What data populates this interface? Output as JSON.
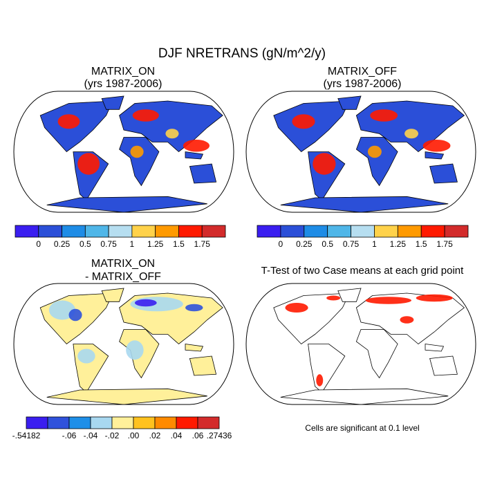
{
  "title": "DJF NRETRANS (gN/m^2/y)",
  "panels": [
    {
      "title": "MATRIX_ON",
      "subtitle": "(yrs 1987-2006)"
    },
    {
      "title": "MATRIX_OFF",
      "subtitle": "(yrs 1987-2006)"
    },
    {
      "title": "MATRIX_ON",
      "subtitle": "- MATRIX_OFF"
    },
    {
      "title": "T-Test of two Case means at each grid point",
      "note": "Cells are significant at 0.1 level"
    }
  ],
  "colorbars": [
    {
      "colors": [
        "#3a1ef0",
        "#2b4fd8",
        "#1e8ce6",
        "#4fb6e8",
        "#b6def0",
        "#ffd24a",
        "#ff9a00",
        "#ff1a00",
        "#d32b2b"
      ],
      "labels": [
        "0",
        "0.25",
        "0.5",
        "0.75",
        "1",
        "1.25",
        "1.5",
        "1.75"
      ]
    },
    {
      "colors": [
        "#3a1ef0",
        "#2b4fd8",
        "#1e8ce6",
        "#4fb6e8",
        "#b6def0",
        "#ffd24a",
        "#ff9a00",
        "#ff1a00",
        "#d32b2b"
      ],
      "labels": [
        "0",
        "0.25",
        "0.5",
        "0.75",
        "1",
        "1.25",
        "1.5",
        "1.75"
      ]
    },
    {
      "colors": [
        "#3a1ef0",
        "#2f52dc",
        "#1e8fe8",
        "#a8d8f0",
        "#fff09a",
        "#ffc21f",
        "#ff8a00",
        "#ff1a00",
        "#d32b2b"
      ],
      "labels": [
        "-.54182",
        "-.06",
        "-.04",
        "-.02",
        ".00",
        ".02",
        ".04",
        ".06",
        ".27436"
      ]
    }
  ]
}
